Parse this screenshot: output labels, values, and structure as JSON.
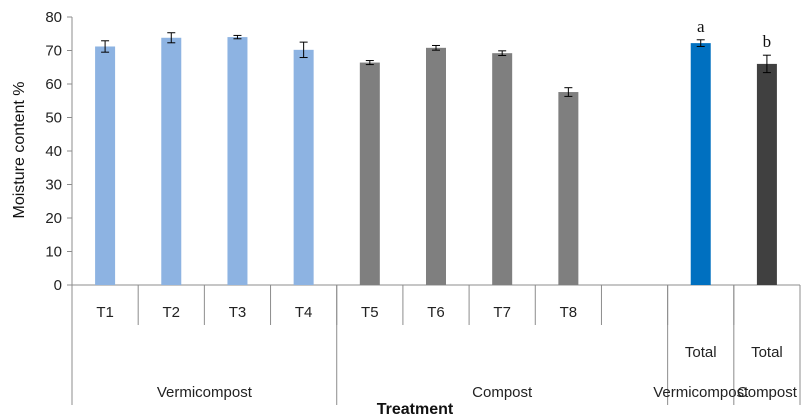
{
  "chart_data": {
    "type": "bar",
    "title": "",
    "xlabel": "Treatment",
    "ylabel": "Moisture content %",
    "ylim": [
      0,
      80
    ],
    "yticks": [
      0,
      10,
      20,
      30,
      40,
      50,
      60,
      70,
      80
    ],
    "grid": false,
    "legend": "none",
    "categories": [
      "T1",
      "T2",
      "T3",
      "T4",
      "T5",
      "T6",
      "T7",
      "T8",
      "",
      "Total",
      "Total"
    ],
    "values": [
      71.2,
      73.8,
      74.0,
      70.2,
      66.4,
      70.8,
      69.2,
      57.6,
      null,
      72.2,
      66.0
    ],
    "errors": [
      1.7,
      1.5,
      0.5,
      2.3,
      0.6,
      0.7,
      0.7,
      1.3,
      null,
      1.0,
      2.6
    ],
    "colors": [
      "#8db3e2",
      "#8db3e2",
      "#8db3e2",
      "#8db3e2",
      "#7f7f7f",
      "#7f7f7f",
      "#7f7f7f",
      "#7f7f7f",
      null,
      "#0070c0",
      "#404040"
    ],
    "annotations": [
      "",
      "",
      "",
      "",
      "",
      "",
      "",
      "",
      "",
      "a",
      "b"
    ],
    "groups": [
      {
        "label": "Vermicompost",
        "span": [
          0,
          3
        ]
      },
      {
        "label": "Compost",
        "span": [
          4,
          8
        ]
      },
      {
        "label": "Vermicompost",
        "span": [
          9,
          9
        ]
      },
      {
        "label": "Compost",
        "span": [
          10,
          10
        ]
      }
    ]
  }
}
